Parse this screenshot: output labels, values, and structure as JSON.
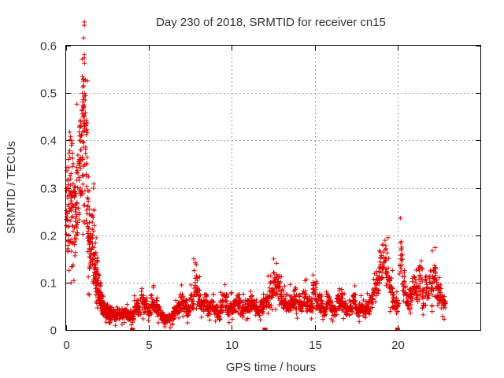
{
  "chart_data": {
    "type": "scatter",
    "title": "Day 230 of 2018, SRMTID for receiver cn15",
    "xlabel": "GPS time / hours",
    "ylabel": "SRMTID / TECUs",
    "xlim": [
      0,
      25
    ],
    "ylim": [
      0,
      0.6
    ],
    "x_ticks": [
      0,
      5,
      10,
      15,
      20
    ],
    "x_tick_labels": [
      "0",
      "5",
      "10",
      "15",
      "20"
    ],
    "y_ticks": [
      0,
      0.1,
      0.2,
      0.3,
      0.4,
      0.5,
      0.6
    ],
    "y_tick_labels": [
      "0",
      "0.1",
      "0.2",
      "0.3",
      "0.4",
      "0.5",
      "0.6"
    ],
    "grid": true,
    "marker": "plus",
    "color": "#e00000",
    "series": [
      {
        "name": "SRMTID",
        "x": [
          0.0,
          0.1,
          0.2,
          0.3,
          0.4,
          0.5,
          0.6,
          0.7,
          0.8,
          0.9,
          1.0,
          1.05,
          1.1,
          1.2,
          1.3,
          1.4,
          1.5,
          1.6,
          1.7,
          1.8,
          1.9,
          2.0,
          2.1,
          2.2,
          2.3,
          2.4,
          2.5,
          2.6,
          2.7,
          2.8,
          2.9,
          3.0,
          3.2,
          3.4,
          3.6,
          3.8,
          4.0,
          4.2,
          4.4,
          4.6,
          4.8,
          5.0,
          5.2,
          5.4,
          5.6,
          5.8,
          6.0,
          6.2,
          6.4,
          6.6,
          6.8,
          7.0,
          7.2,
          7.4,
          7.6,
          7.8,
          8.0,
          8.2,
          8.4,
          8.6,
          8.8,
          9.0,
          9.2,
          9.4,
          9.6,
          9.8,
          10.0,
          10.2,
          10.4,
          10.6,
          10.8,
          11.0,
          11.2,
          11.4,
          11.6,
          11.8,
          12.0,
          12.2,
          12.4,
          12.6,
          12.8,
          13.0,
          13.2,
          13.4,
          13.6,
          13.8,
          14.0,
          14.2,
          14.4,
          14.6,
          14.8,
          15.0,
          15.2,
          15.4,
          15.6,
          15.8,
          16.0,
          16.2,
          16.4,
          16.6,
          16.8,
          17.0,
          17.2,
          17.4,
          17.6,
          17.8,
          18.0,
          18.2,
          18.4,
          18.6,
          18.8,
          19.0,
          19.2,
          19.4,
          19.6,
          19.8,
          20.0,
          20.2,
          20.4,
          20.6,
          20.8,
          21.0,
          21.2,
          21.4,
          21.6,
          21.8,
          22.0,
          22.2,
          22.4,
          22.6,
          22.8
        ],
        "y": [
          0.22,
          0.3,
          0.25,
          0.33,
          0.24,
          0.28,
          0.2,
          0.3,
          0.36,
          0.38,
          0.45,
          0.53,
          0.42,
          0.35,
          0.26,
          0.18,
          0.16,
          0.2,
          0.13,
          0.12,
          0.1,
          0.08,
          0.06,
          0.05,
          0.04,
          0.045,
          0.035,
          0.03,
          0.04,
          0.035,
          0.03,
          0.03,
          0.035,
          0.03,
          0.035,
          0.03,
          0.03,
          0.05,
          0.04,
          0.06,
          0.05,
          0.04,
          0.06,
          0.05,
          0.04,
          0.03,
          0.02,
          0.025,
          0.03,
          0.04,
          0.05,
          0.06,
          0.05,
          0.04,
          0.06,
          0.1,
          0.07,
          0.05,
          0.06,
          0.04,
          0.05,
          0.04,
          0.03,
          0.05,
          0.06,
          0.04,
          0.05,
          0.05,
          0.06,
          0.04,
          0.05,
          0.05,
          0.06,
          0.05,
          0.04,
          0.05,
          0.06,
          0.07,
          0.08,
          0.1,
          0.09,
          0.07,
          0.06,
          0.05,
          0.06,
          0.07,
          0.06,
          0.05,
          0.07,
          0.06,
          0.05,
          0.08,
          0.06,
          0.05,
          0.04,
          0.06,
          0.05,
          0.04,
          0.06,
          0.07,
          0.05,
          0.04,
          0.05,
          0.06,
          0.04,
          0.05,
          0.04,
          0.05,
          0.06,
          0.08,
          0.1,
          0.13,
          0.15,
          0.12,
          0.09,
          0.06,
          0.05,
          0.15,
          0.1,
          0.06,
          0.07,
          0.09,
          0.08,
          0.11,
          0.07,
          0.09,
          0.1,
          0.11,
          0.09,
          0.07,
          0.06
        ]
      }
    ],
    "zero_markers_x": [
      4.0,
      12.0,
      20.0
    ]
  }
}
